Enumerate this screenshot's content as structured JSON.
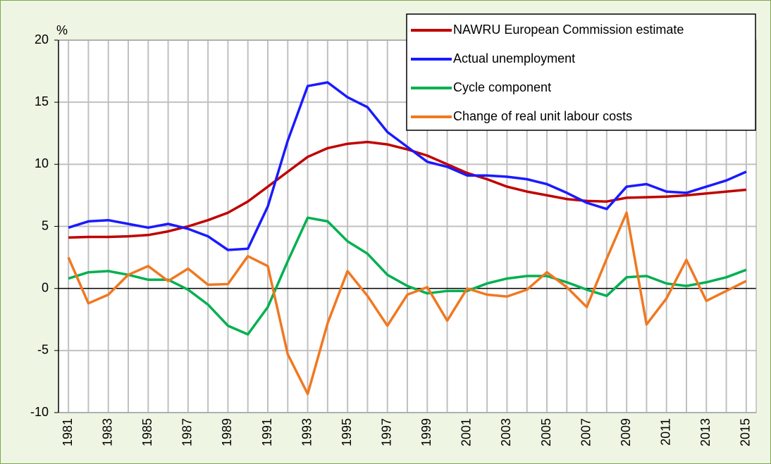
{
  "chart_data": {
    "type": "line",
    "y_label": "%",
    "categories": [
      "1981",
      null,
      "1983",
      null,
      "1985",
      null,
      "1987",
      null,
      "1989",
      null,
      "1991",
      null,
      "1993",
      null,
      "1995",
      null,
      "1997",
      null,
      "1999",
      null,
      "2001",
      null,
      "2003",
      null,
      "2005",
      null,
      "2007",
      null,
      "2009",
      null,
      "2011",
      null,
      "2013",
      null,
      "2015"
    ],
    "series": [
      {
        "name": "NAWRU European Commission estimate",
        "color": "#c00000",
        "values": [
          4.1,
          4.15,
          4.15,
          4.2,
          4.3,
          4.6,
          5.0,
          5.5,
          6.1,
          7.0,
          8.2,
          9.4,
          10.6,
          11.3,
          11.65,
          11.8,
          11.6,
          11.2,
          10.7,
          10.0,
          9.3,
          8.8,
          8.2,
          7.8,
          7.5,
          7.2,
          7.05,
          7.0,
          7.3,
          7.35,
          7.4,
          7.5,
          7.65,
          7.8,
          7.95
        ]
      },
      {
        "name": "Actual unemployment",
        "color": "#1a1aff",
        "values": [
          4.9,
          5.4,
          5.5,
          5.2,
          4.9,
          5.2,
          4.8,
          4.2,
          3.1,
          3.2,
          6.6,
          11.9,
          16.3,
          16.6,
          15.4,
          14.6,
          12.6,
          11.4,
          10.2,
          9.8,
          9.1,
          9.1,
          9.0,
          8.8,
          8.4,
          7.7,
          6.9,
          6.4,
          8.2,
          8.4,
          7.8,
          7.7,
          8.2,
          8.7,
          9.4
        ]
      },
      {
        "name": "Cycle component",
        "color": "#00b050",
        "values": [
          0.8,
          1.3,
          1.4,
          1.1,
          0.7,
          0.7,
          -0.1,
          -1.3,
          -3.0,
          -3.7,
          -1.5,
          2.2,
          5.7,
          5.4,
          3.8,
          2.8,
          1.1,
          0.2,
          -0.4,
          -0.2,
          -0.2,
          0.4,
          0.8,
          1.0,
          1.0,
          0.5,
          -0.1,
          -0.6,
          0.9,
          1.0,
          0.4,
          0.2,
          0.5,
          0.9,
          1.5
        ]
      },
      {
        "name": "Change of real unit labour costs",
        "color": "#f07820",
        "values": [
          2.5,
          -1.2,
          -0.5,
          1.1,
          1.8,
          0.6,
          1.6,
          0.3,
          0.35,
          2.6,
          1.8,
          -5.3,
          -8.5,
          -2.8,
          1.4,
          -0.6,
          -3.0,
          -0.5,
          0.1,
          -2.6,
          0.0,
          -0.5,
          -0.65,
          -0.1,
          1.3,
          0.1,
          -1.5,
          2.4,
          6.1,
          -2.9,
          -0.8,
          2.3,
          -1.0,
          -0.2,
          0.6
        ]
      }
    ],
    "ylim": [
      -10,
      20
    ],
    "yticks": [
      -10,
      -5,
      0,
      5,
      10,
      15,
      20
    ],
    "grid": true,
    "legend": "upper right"
  }
}
